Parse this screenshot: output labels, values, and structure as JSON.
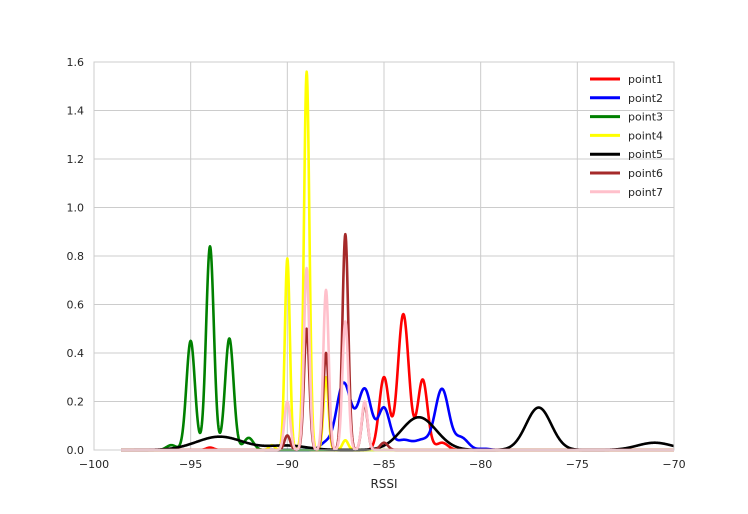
{
  "chart_data": {
    "type": "line",
    "title": "",
    "xlabel": "RSSI",
    "ylabel": "",
    "xlim": [
      -100,
      -70
    ],
    "ylim": [
      0,
      1.6
    ],
    "xticks": [
      -100,
      -95,
      -90,
      -85,
      -80,
      -75,
      -70
    ],
    "yticks": [
      0.0,
      0.2,
      0.4,
      0.6,
      0.8,
      1.0,
      1.2,
      1.4,
      1.6
    ],
    "xtick_labels": [
      "−100",
      "−95",
      "−90",
      "−85",
      "−80",
      "−75",
      "−70"
    ],
    "ytick_labels": [
      "0.0",
      "0.2",
      "0.4",
      "0.6",
      "0.8",
      "1.0",
      "1.2",
      "1.4",
      "1.6"
    ],
    "grid": true,
    "legend_position": "top-right",
    "series": [
      {
        "name": "point1",
        "color": "#ff0000",
        "peaks": [
          [
            -94.0,
            0.01,
            0.2
          ],
          [
            -85.0,
            0.3,
            0.25
          ],
          [
            -84.0,
            0.56,
            0.28
          ],
          [
            -83.0,
            0.29,
            0.25
          ],
          [
            -82.0,
            0.03,
            0.3
          ]
        ]
      },
      {
        "name": "point2",
        "color": "#0000ff",
        "peaks": [
          [
            -88.0,
            0.03,
            0.3
          ],
          [
            -87.3,
            0.08,
            0.3
          ],
          [
            -87.0,
            0.22,
            0.35
          ],
          [
            -86.0,
            0.25,
            0.35
          ],
          [
            -85.0,
            0.17,
            0.3
          ],
          [
            -84.0,
            0.04,
            0.4
          ],
          [
            -83.0,
            0.04,
            0.4
          ],
          [
            -82.0,
            0.25,
            0.35
          ],
          [
            -81.0,
            0.05,
            0.35
          ],
          [
            -79.8,
            0.005,
            0.3
          ]
        ]
      },
      {
        "name": "point3",
        "color": "#008000",
        "peaks": [
          [
            -96.0,
            0.02,
            0.25
          ],
          [
            -95.0,
            0.45,
            0.22
          ],
          [
            -94.0,
            0.84,
            0.2
          ],
          [
            -93.0,
            0.46,
            0.22
          ],
          [
            -92.0,
            0.05,
            0.25
          ]
        ]
      },
      {
        "name": "point4",
        "color": "#ffff00",
        "peaks": [
          [
            -90.8,
            0.02,
            0.15
          ],
          [
            -90.0,
            0.79,
            0.13
          ],
          [
            -89.0,
            1.56,
            0.14
          ],
          [
            -88.0,
            0.3,
            0.13
          ],
          [
            -87.0,
            0.04,
            0.15
          ]
        ]
      },
      {
        "name": "point5",
        "color": "#000000",
        "peaks": [
          [
            -93.5,
            0.055,
            1.2
          ],
          [
            -90.0,
            0.018,
            1.0
          ],
          [
            -83.2,
            0.135,
            0.9
          ],
          [
            -77.0,
            0.175,
            0.65
          ],
          [
            -71.0,
            0.03,
            0.9
          ]
        ]
      },
      {
        "name": "point6",
        "color": "#a52a2a",
        "peaks": [
          [
            -90.0,
            0.06,
            0.15
          ],
          [
            -89.0,
            0.5,
            0.14
          ],
          [
            -88.0,
            0.4,
            0.14
          ],
          [
            -87.0,
            0.89,
            0.15
          ],
          [
            -86.0,
            0.19,
            0.15
          ],
          [
            -85.0,
            0.03,
            0.2
          ]
        ]
      },
      {
        "name": "point7",
        "color": "#ffc0cb",
        "peaks": [
          [
            -90.0,
            0.2,
            0.15
          ],
          [
            -89.0,
            0.75,
            0.14
          ],
          [
            -88.0,
            0.66,
            0.14
          ],
          [
            -87.0,
            0.53,
            0.15
          ],
          [
            -86.0,
            0.2,
            0.15
          ]
        ]
      }
    ]
  }
}
